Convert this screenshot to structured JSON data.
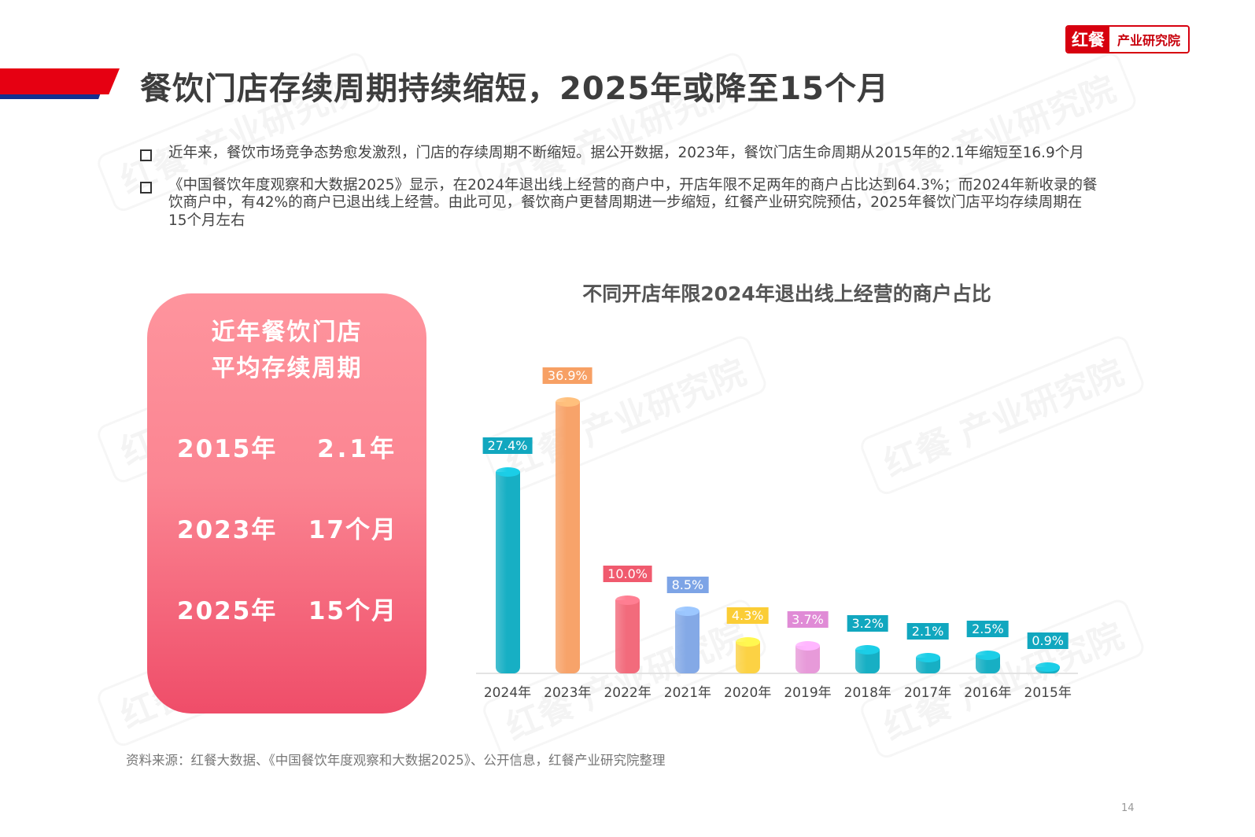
{
  "header": {
    "title": "餐饮门店存续周期持续缩短，2025年或降至15个月",
    "ribbon_colors": {
      "red": "#e60012",
      "blue": "#14308f"
    }
  },
  "logo": {
    "left_text": "红餐",
    "right_text": "产业研究院",
    "color": "#d7000f"
  },
  "bullets": [
    {
      "text": "近年来，餐饮市场竞争态势愈发激烈，门店的存续周期不断缩短。据公开数据，2023年，餐饮门店生命周期从2015年的2.1年缩短至16.9个月"
    },
    {
      "text": "《中国餐饮年度观察和大数据2025》显示，在2024年退出线上经营的商户中，开店年限不足两年的商户占比达到64.3%；而2024年新收录的餐饮商户中，有42%的商户已退出线上经营。由此可见，餐饮商户更替周期进一步缩短，红餐产业研究院预估，2025年餐饮门店平均存续周期在15个月左右"
    }
  ],
  "card": {
    "title_line1": "近年餐饮门店",
    "title_line2": "平均存续周期",
    "rows": [
      {
        "year": "2015年",
        "value": "2.1年"
      },
      {
        "year": "2023年",
        "value": "17个月"
      },
      {
        "year": "2025年",
        "value": "15个月"
      }
    ],
    "gradient": [
      "#fe949d",
      "#ef4d69"
    ]
  },
  "chart_data": {
    "type": "bar",
    "title": "不同开店年限2024年退出线上经营的商户占比",
    "categories": [
      "2024年",
      "2023年",
      "2022年",
      "2021年",
      "2020年",
      "2019年",
      "2018年",
      "2017年",
      "2016年",
      "2015年"
    ],
    "values": [
      27.4,
      36.9,
      10.0,
      8.5,
      4.3,
      3.7,
      3.2,
      2.1,
      2.5,
      0.9
    ],
    "labels": [
      "27.4%",
      "36.9%",
      "10.0%",
      "8.5%",
      "4.3%",
      "3.7%",
      "3.2%",
      "2.1%",
      "2.5%",
      "0.9%"
    ],
    "colors": [
      "#17afc4",
      "#f7a36a",
      "#f26b7c",
      "#84a9e6",
      "#fcd244",
      "#e79ad9",
      "#17afc4",
      "#17afc4",
      "#17afc4",
      "#17afc4"
    ],
    "label_colors": [
      "#11a7bf",
      "#f7a064",
      "#f05a6e",
      "#7da4e6",
      "#fbcd36",
      "#e08bd6",
      "#11a7bf",
      "#11a7bf",
      "#11a7bf",
      "#11a7bf"
    ],
    "unit": "%",
    "xlabel": "",
    "ylabel": "",
    "ylim": [
      0,
      40
    ],
    "grid": false,
    "legend": null
  },
  "footer": {
    "source": "资料来源：红餐大数据、《中国餐饮年度观察和大数据2025》、公开信息，红餐产业研究院整理",
    "page_number": "14"
  },
  "watermark": {
    "text_left": "红餐",
    "text_right": "产业研究院"
  }
}
